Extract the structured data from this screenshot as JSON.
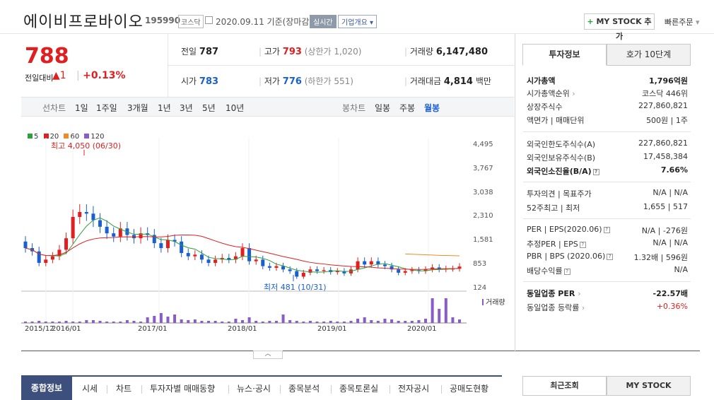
{
  "header": {
    "company": "에이비프로바이오",
    "code": "195990",
    "market": "코스닥",
    "date": "2020.09.11",
    "basis": "기준(장마감)",
    "live_label": "실시간",
    "overview_label": "기업개요",
    "mystock_label": "MY STOCK 추가",
    "quick_order": "빠른주문"
  },
  "price": {
    "current": "788",
    "compare_label": "전일대비",
    "change": "1",
    "change_pct": "+0.13%",
    "color": "#e02020"
  },
  "stats": {
    "prev_label": "전일",
    "prev_value": "787",
    "high_label": "고가",
    "high_value": "793",
    "upper_limit": "(상한가 1,020)",
    "volume_label": "거래량",
    "volume_value": "6,147,480",
    "open_label": "시가",
    "open_value": "783",
    "low_label": "저가",
    "low_value": "776",
    "lower_limit": "(하한가 551)",
    "amount_label": "거래대금",
    "amount_value": "4,814",
    "amount_unit": "백만"
  },
  "period_bar": {
    "line_label": "선차트",
    "line_periods": [
      "1일",
      "1주일",
      "3개월",
      "1년",
      "3년",
      "5년",
      "10년"
    ],
    "candle_label": "봉차트",
    "candle_periods": [
      "일봉",
      "주봉",
      "월봉"
    ],
    "selected": "월봉"
  },
  "chart_data": {
    "type": "candlestick",
    "legend": [
      {
        "name": "5",
        "color": "#2aa13a"
      },
      {
        "name": "20",
        "color": "#e02020"
      },
      {
        "name": "60",
        "color": "#f08a24"
      },
      {
        "name": "120",
        "color": "#8a5cc8"
      }
    ],
    "y_ticks": [
      "4,495",
      "3,767",
      "3,038",
      "2,310",
      "1,581",
      "853",
      "124"
    ],
    "ylim": [
      124,
      4495
    ],
    "x_ticks": [
      "2015/12",
      "2016/01",
      "2017/01",
      "2018/01",
      "2019/01",
      "2020/01"
    ],
    "high_annotation": "최고 4,050 (06/30)",
    "low_annotation": "최저 481 (10/31)",
    "volume_label": "거래량",
    "up_color": "#e02020",
    "down_color": "#1a5fd0"
  },
  "tabs": [
    "종합정보",
    "시세",
    "차트",
    "투자자별 매매동향",
    "뉴스·공시",
    "종목분석",
    "종목토론실",
    "전자공시",
    "공매도현황"
  ],
  "right": {
    "tab_invest": "투자정보",
    "tab_hoga": "호가 10단계",
    "market_cap_label": "시가총액",
    "market_cap": "1,796억원",
    "cap_rank_label": "시가총액순위",
    "cap_rank": "코스닥 446위",
    "shares_label": "상장주식수",
    "shares": "227,860,821",
    "par_label": "액면가 | 매매단위",
    "par": "500원 | 1주",
    "foreign_limit_label": "외국인한도주식수(A)",
    "foreign_limit": "227,860,821",
    "foreign_hold_label": "외국인보유주식수(B)",
    "foreign_hold": "17,458,384",
    "foreign_ratio_label": "외국인소진율(B/A)",
    "foreign_ratio": "7.66%",
    "opinion_label": "투자의견 | 목표주가",
    "opinion": "N/A | N/A",
    "w52_label": "52주최고 | 최저",
    "w52": "1,655 | 517",
    "per_label": "PER | EPS(2020.06)",
    "per": "N/A | -276원",
    "est_label": "추정PER | EPS",
    "est": "N/A | N/A",
    "pbr_label": "PBR | BPS (2020.06)",
    "pbr": "1.32배 | 596원",
    "div_label": "배당수익률",
    "div": "N/A",
    "ind_per_label": "동일업종 PER",
    "ind_per": "-22.57배",
    "ind_rate_label": "동일업종 등락률",
    "ind_rate": "+0.36%",
    "recent_label": "최근조회",
    "mystock_label": "MY STOCK"
  }
}
